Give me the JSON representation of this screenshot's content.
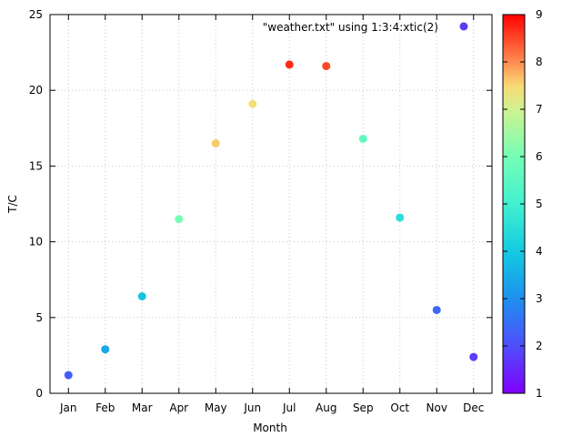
{
  "chart_data": {
    "type": "scatter",
    "title": "",
    "xlabel": "Month",
    "ylabel": "T/C",
    "categories": [
      "Jan",
      "Feb",
      "Mar",
      "Apr",
      "May",
      "Jun",
      "Jul",
      "Aug",
      "Sep",
      "Oct",
      "Nov",
      "Dec"
    ],
    "ylim": [
      0,
      25
    ],
    "yticks": [
      0,
      5,
      10,
      15,
      20,
      25
    ],
    "grid": true,
    "legend": {
      "position": "top-right",
      "entry": "\"weather.txt\" using 1:3:4:xtic(2)"
    },
    "colorbar": {
      "range": [
        1,
        9
      ],
      "ticks": [
        1,
        2,
        3,
        4,
        5,
        6,
        7,
        8,
        9
      ],
      "palette": "rainbow"
    },
    "series": [
      {
        "name": "\"weather.txt\" using 1:3:4:xtic(2)",
        "points": [
          {
            "x": "Jan",
            "y": 1.2,
            "c": 2.2
          },
          {
            "x": "Feb",
            "y": 2.9,
            "c": 3.4
          },
          {
            "x": "Mar",
            "y": 6.4,
            "c": 3.9
          },
          {
            "x": "Apr",
            "y": 11.5,
            "c": 6.0
          },
          {
            "x": "May",
            "y": 16.5,
            "c": 7.6
          },
          {
            "x": "Jun",
            "y": 19.1,
            "c": 7.4
          },
          {
            "x": "Jul",
            "y": 21.7,
            "c": 8.7
          },
          {
            "x": "Aug",
            "y": 21.6,
            "c": 8.5
          },
          {
            "x": "Sep",
            "y": 16.8,
            "c": 5.6
          },
          {
            "x": "Oct",
            "y": 11.6,
            "c": 4.5
          },
          {
            "x": "Nov",
            "y": 5.5,
            "c": 2.4
          },
          {
            "x": "Dec",
            "y": 2.4,
            "c": 1.8
          }
        ]
      }
    ]
  },
  "colors": {
    "axis": "#000000",
    "grid": "#c8c8c8",
    "legend_marker": "#5a3cf0"
  }
}
